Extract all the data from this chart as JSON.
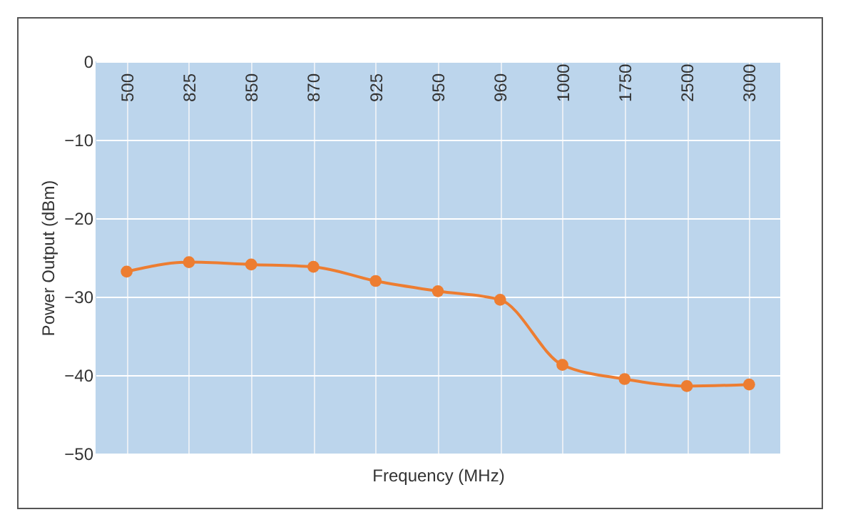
{
  "chart_data": {
    "type": "line",
    "xlabel": "Frequency (MHz)",
    "ylabel": "Power Output (dBm)",
    "categories": [
      "500",
      "825",
      "850",
      "870",
      "925",
      "950",
      "960",
      "1000",
      "1750",
      "2500",
      "3000"
    ],
    "series": [
      {
        "color": "#ed7d31",
        "values": [
          -26.8,
          -25.6,
          -25.9,
          -26.2,
          -28.0,
          -29.3,
          -30.4,
          -38.7,
          -40.5,
          -41.4,
          -41.2
        ]
      }
    ],
    "ylim": [
      -50,
      0
    ],
    "yticks": [
      -50,
      -40,
      -30,
      -20,
      -10,
      0
    ],
    "grid": true,
    "marker": "circle",
    "line_style": "solid"
  }
}
